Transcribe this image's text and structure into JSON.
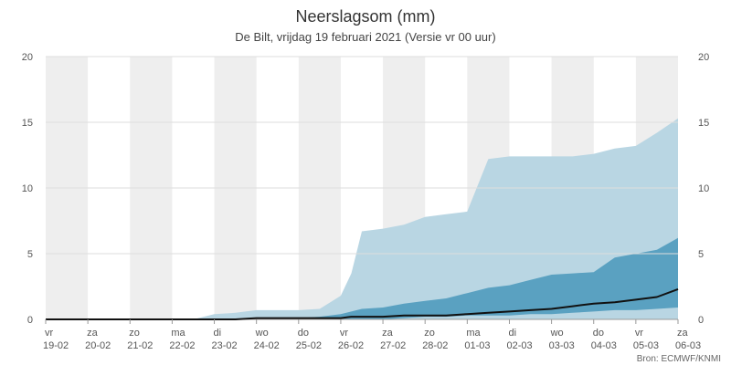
{
  "chart_data": {
    "type": "area",
    "title": "Neerslagsom (mm)",
    "subtitle": "De Bilt, vrijdag 19 februari 2021 (Versie vr 00 uur)",
    "source": "Bron: ECMWF/KNMI",
    "ylim": [
      0,
      20
    ],
    "y_ticks": [
      "0",
      "5",
      "10",
      "15",
      "20"
    ],
    "x_range": [
      0,
      15
    ],
    "categories": [
      {
        "day": "vr",
        "date": "19-02"
      },
      {
        "day": "za",
        "date": "20-02"
      },
      {
        "day": "zo",
        "date": "21-02"
      },
      {
        "day": "ma",
        "date": "22-02"
      },
      {
        "day": "di",
        "date": "23-02"
      },
      {
        "day": "wo",
        "date": "24-02"
      },
      {
        "day": "do",
        "date": "25-02"
      },
      {
        "day": "vr",
        "date": "26-02"
      },
      {
        "day": "za",
        "date": "27-02"
      },
      {
        "day": "zo",
        "date": "28-02"
      },
      {
        "day": "ma",
        "date": "01-03"
      },
      {
        "day": "di",
        "date": "02-03"
      },
      {
        "day": "wo",
        "date": "03-03"
      },
      {
        "day": "do",
        "date": "04-03"
      },
      {
        "day": "vr",
        "date": "05-03"
      },
      {
        "day": "za",
        "date": "06-03"
      }
    ],
    "x": [
      0,
      3.5,
      4.0,
      4.5,
      5.0,
      6.0,
      6.5,
      7.0,
      7.25,
      7.5,
      8.0,
      8.5,
      9.0,
      9.5,
      10.0,
      10.5,
      11.0,
      11.5,
      12.0,
      12.5,
      13.0,
      13.5,
      14.0,
      14.5,
      15.0
    ],
    "series": [
      {
        "name": "band-outer",
        "color": "#b9d6e3",
        "lower": [
          0,
          0,
          0,
          0,
          0,
          0,
          0,
          0,
          0,
          0,
          0,
          0,
          0,
          0,
          0,
          0,
          0,
          0,
          0,
          0,
          0,
          0,
          0,
          0,
          0
        ],
        "upper": [
          0,
          0,
          0.4,
          0.5,
          0.7,
          0.7,
          0.8,
          1.8,
          3.5,
          6.7,
          6.9,
          7.2,
          7.8,
          8.0,
          8.2,
          12.2,
          12.4,
          12.4,
          12.4,
          12.4,
          12.6,
          13.0,
          13.2,
          14.2,
          15.3
        ]
      },
      {
        "name": "band-inner",
        "color": "#5aa1c1",
        "lower": [
          0,
          0,
          0,
          0,
          0,
          0,
          0,
          0,
          0,
          0,
          0,
          0.1,
          0.2,
          0.2,
          0.3,
          0.3,
          0.3,
          0.4,
          0.4,
          0.5,
          0.6,
          0.7,
          0.7,
          0.8,
          0.9
        ],
        "upper": [
          0,
          0,
          0,
          0,
          0.1,
          0.1,
          0.2,
          0.4,
          0.6,
          0.8,
          0.9,
          1.2,
          1.4,
          1.6,
          2.0,
          2.4,
          2.6,
          3.0,
          3.4,
          3.5,
          3.6,
          4.7,
          5.0,
          5.3,
          6.2
        ]
      }
    ],
    "median": [
      0,
      0,
      0,
      0,
      0.1,
      0.1,
      0.1,
      0.1,
      0.2,
      0.2,
      0.2,
      0.3,
      0.3,
      0.3,
      0.4,
      0.5,
      0.6,
      0.7,
      0.8,
      1.0,
      1.2,
      1.3,
      1.5,
      1.7,
      2.3
    ],
    "median_color": "#111111"
  }
}
